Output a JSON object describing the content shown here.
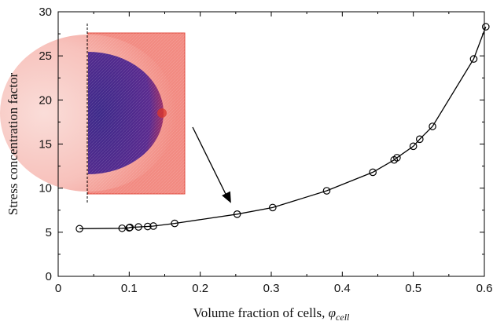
{
  "chart_data": {
    "type": "line",
    "title": "",
    "xlabel": "Volume fraction of cells, ",
    "xlabel_symbol": "φ",
    "xlabel_subscript": "cell",
    "ylabel": "Stress concentration factor",
    "xlim": [
      0,
      0.6
    ],
    "ylim": [
      0,
      30
    ],
    "xticks": [
      0,
      0.1,
      0.2,
      0.3,
      0.4,
      0.5,
      0.6
    ],
    "xtick_labels": [
      "0",
      "0.1",
      "0.2",
      "0.3",
      "0.4",
      "0.5",
      "0.6"
    ],
    "yticks": [
      0,
      5,
      10,
      15,
      20,
      25,
      30
    ],
    "ytick_labels": [
      "0",
      "5",
      "10",
      "15",
      "20",
      "25",
      "30"
    ],
    "grid": false,
    "marker": "open-circle",
    "series": [
      {
        "x": [
          0.03,
          0.09,
          0.1,
          0.101,
          0.113,
          0.126,
          0.134,
          0.164,
          0.252,
          0.302,
          0.378,
          0.443,
          0.473,
          0.477,
          0.5,
          0.509,
          0.527,
          0.585,
          0.602
        ],
        "y": [
          5.4,
          5.45,
          5.5,
          5.55,
          5.6,
          5.65,
          5.7,
          6.0,
          7.05,
          7.8,
          9.7,
          11.8,
          13.2,
          13.45,
          14.75,
          15.55,
          17.0,
          24.65,
          28.3
        ]
      }
    ],
    "inset": {
      "description_icon": "stress-field-inset-image",
      "colors": {
        "background": "#f28b82",
        "cell": "#4b2a8c",
        "halo": "#f7c3bd",
        "frame": "#e04a3c"
      },
      "arrow_target": {
        "x": 0.25,
        "y": 7.05
      }
    },
    "colors": {
      "line": "#000000",
      "axis": "#000000"
    }
  }
}
